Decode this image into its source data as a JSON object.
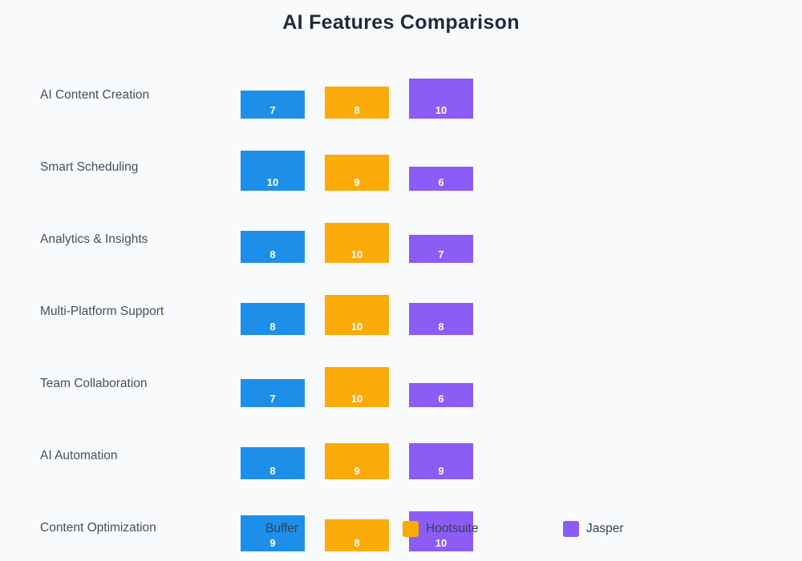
{
  "title": "AI Features Comparison",
  "colors": {
    "background": "#F8FAFC",
    "title_text": "#1E2B3C",
    "row_label_text": "#46505E",
    "legend_text": "#36404E",
    "value_label_text": "#FFFFFF",
    "buffer_blue": "#1E8FE8",
    "hootsuite_orange": "#FBAB07",
    "jasper_purple": "#8B5CF6"
  },
  "legend": {
    "position": "bottom",
    "items": [
      {
        "label": "Buffer",
        "color": "#1E8FE8"
      },
      {
        "label": "Hootsuite",
        "color": "#FBAB07"
      },
      {
        "label": "Jasper",
        "color": "#8B5CF6"
      }
    ]
  },
  "chart_data": {
    "type": "bar",
    "title": "AI Features Comparison",
    "categories": [
      "AI Content Creation",
      "Smart Scheduling",
      "Analytics & Insights",
      "Multi-Platform Support",
      "Team Collaboration",
      "AI Automation",
      "Content Optimization"
    ],
    "series": [
      {
        "name": "Buffer",
        "color": "#1E8FE8",
        "values": [
          7,
          10,
          8,
          8,
          7,
          8,
          9
        ]
      },
      {
        "name": "Hootsuite",
        "color": "#FBAB07",
        "values": [
          8,
          9,
          10,
          10,
          10,
          9,
          8
        ]
      },
      {
        "name": "Jasper",
        "color": "#8B5CF6",
        "values": [
          10,
          6,
          7,
          8,
          6,
          9,
          10
        ]
      }
    ],
    "value_range": [
      0,
      10
    ],
    "value_labels_shown": true,
    "grid": false,
    "axes_shown": false,
    "legend_position": "bottom"
  }
}
